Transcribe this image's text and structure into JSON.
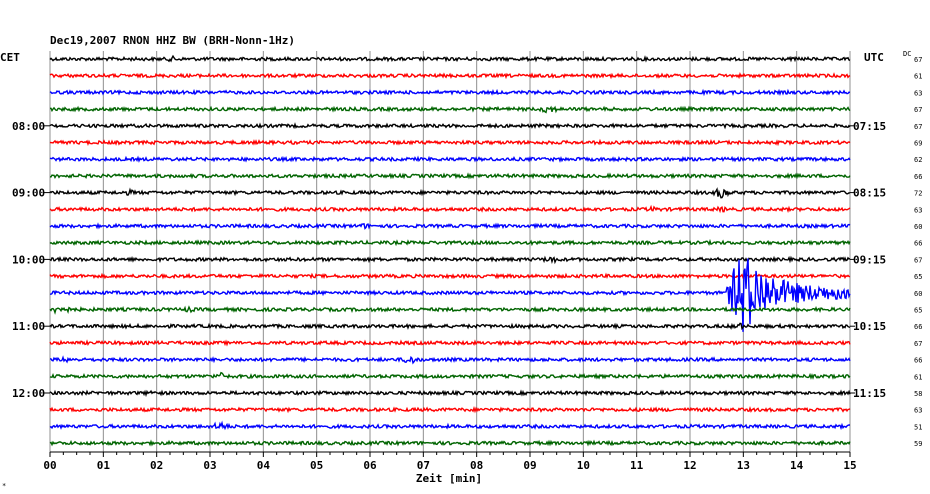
{
  "chart_data": {
    "type": "line",
    "title": "Dec19,2007   RNON HHZ BW (BRH-Nonn-1Hz)",
    "left_axis_label": "CET",
    "right_axis_label": "UTC",
    "dc_label": "DC",
    "xlabel": "Zeit [min]",
    "x_ticks": [
      "00",
      "01",
      "02",
      "03",
      "04",
      "05",
      "06",
      "07",
      "08",
      "09",
      "10",
      "11",
      "12",
      "13",
      "14",
      "15"
    ],
    "xlim": [
      0,
      15
    ],
    "grid": true,
    "left_hour_labels": [
      {
        "row": 4,
        "text": "08:00"
      },
      {
        "row": 8,
        "text": "09:00"
      },
      {
        "row": 12,
        "text": "10:00"
      },
      {
        "row": 16,
        "text": "11:00"
      },
      {
        "row": 20,
        "text": "12:00"
      }
    ],
    "right_hour_labels": [
      {
        "row": 4,
        "text": "07:15"
      },
      {
        "row": 8,
        "text": "08:15"
      },
      {
        "row": 12,
        "text": "09:15"
      },
      {
        "row": 16,
        "text": "10:15"
      },
      {
        "row": 20,
        "text": "11:15"
      }
    ],
    "colors": [
      "#000000",
      "#ff0000",
      "#0000ff",
      "#006400"
    ],
    "traces": [
      {
        "color_index": 0,
        "dc": "67",
        "events": [
          {
            "t": 2.3,
            "amp": 3
          }
        ]
      },
      {
        "color_index": 1,
        "dc": "61",
        "events": []
      },
      {
        "color_index": 2,
        "dc": "63",
        "events": [
          {
            "t": 12.2,
            "amp": 2
          }
        ]
      },
      {
        "color_index": 3,
        "dc": "67",
        "events": [
          {
            "t": 9.35,
            "amp": 5
          }
        ]
      },
      {
        "color_index": 0,
        "dc": "67",
        "events": []
      },
      {
        "color_index": 1,
        "dc": "69",
        "events": []
      },
      {
        "color_index": 2,
        "dc": "62",
        "events": []
      },
      {
        "color_index": 3,
        "dc": "66",
        "events": []
      },
      {
        "color_index": 0,
        "dc": "72",
        "events": [
          {
            "t": 12.6,
            "amp": 6
          },
          {
            "t": 1.5,
            "amp": 3
          }
        ]
      },
      {
        "color_index": 1,
        "dc": "63",
        "events": [
          {
            "t": 11.3,
            "amp": 3
          },
          {
            "t": 12.6,
            "amp": 3
          }
        ]
      },
      {
        "color_index": 2,
        "dc": "60",
        "events": [
          {
            "t": 5.9,
            "amp": 3
          }
        ]
      },
      {
        "color_index": 3,
        "dc": "66",
        "events": [
          {
            "t": 4.2,
            "amp": 2
          }
        ]
      },
      {
        "color_index": 0,
        "dc": "67",
        "events": [
          {
            "t": 9.4,
            "amp": 4
          }
        ]
      },
      {
        "color_index": 1,
        "dc": "65",
        "events": []
      },
      {
        "color_index": 2,
        "dc": "60",
        "events": [],
        "quake": {
          "start": 12.65,
          "peak": 12.95,
          "end": 15.0,
          "amp": 42
        }
      },
      {
        "color_index": 3,
        "dc": "65",
        "events": [
          {
            "t": 0.2,
            "amp": 6
          },
          {
            "t": 2.6,
            "amp": 3
          }
        ]
      },
      {
        "color_index": 0,
        "dc": "66",
        "events": [
          {
            "t": 12.9,
            "amp": 4
          }
        ]
      },
      {
        "color_index": 1,
        "dc": "67",
        "events": []
      },
      {
        "color_index": 2,
        "dc": "66",
        "events": [
          {
            "t": 6.75,
            "amp": 5
          },
          {
            "t": 0.3,
            "amp": 3
          }
        ]
      },
      {
        "color_index": 3,
        "dc": "61",
        "events": [
          {
            "t": 3.2,
            "amp": 4
          }
        ]
      },
      {
        "color_index": 0,
        "dc": "58",
        "events": [
          {
            "t": 1.9,
            "amp": 3
          }
        ]
      },
      {
        "color_index": 1,
        "dc": "63",
        "events": []
      },
      {
        "color_index": 2,
        "dc": "51",
        "events": [
          {
            "t": 3.2,
            "amp": 5
          }
        ]
      },
      {
        "color_index": 3,
        "dc": "59",
        "events": []
      }
    ]
  }
}
